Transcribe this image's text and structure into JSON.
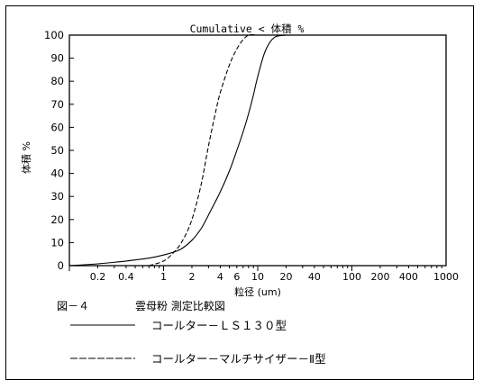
{
  "chart_data": {
    "type": "line",
    "title": "Cumulative < 体積 %",
    "ylabel": "体積 %",
    "xlabel": "粒径 (um)",
    "x_scale": "log",
    "xlim": [
      0.1,
      1000
    ],
    "ylim": [
      0,
      100
    ],
    "grid": false,
    "y_ticks": [
      0,
      10,
      20,
      30,
      40,
      50,
      60,
      70,
      80,
      90,
      100
    ],
    "x_ticks": [
      0.2,
      0.4,
      1,
      2,
      4,
      6,
      10,
      20,
      40,
      100,
      200,
      400,
      1000
    ],
    "x_tick_labels": [
      "0.2",
      "0.4",
      "1",
      "2",
      "4",
      "6",
      "10",
      "20",
      "40",
      "100",
      "200",
      "400",
      "1000"
    ],
    "series": [
      {
        "name": "コールターＬＳ１３０型",
        "style": "solid",
        "x": [
          0.1,
          0.2,
          0.4,
          0.7,
          1,
          1.5,
          2,
          2.5,
          3,
          4,
          5,
          6,
          7,
          8,
          9,
          10,
          12,
          15,
          20
        ],
        "y": [
          0,
          0.8,
          2.0,
          3.3,
          4.6,
          7,
          11,
          16,
          22,
          32,
          41,
          50,
          58,
          66,
          74,
          82,
          93,
          99,
          100
        ]
      },
      {
        "name": "コールターマルチサイザーⅡ型",
        "style": "dashed",
        "x": [
          0.7,
          1,
          1.3,
          1.6,
          2,
          2.5,
          3,
          3.5,
          4,
          5,
          6,
          7,
          8,
          10
        ],
        "y": [
          0,
          2,
          6,
          11,
          20,
          35,
          52,
          65,
          75,
          87,
          94,
          98,
          100,
          100
        ]
      }
    ]
  },
  "caption": {
    "figure_label": "図－４",
    "figure_title": "雲母粉 測定比較図"
  },
  "legend": {
    "items": [
      {
        "label": "コールター－ＬＳ１３０型",
        "style": "solid"
      },
      {
        "label": "コールター－マルチサイザー－Ⅱ型",
        "style": "dashed"
      }
    ]
  }
}
